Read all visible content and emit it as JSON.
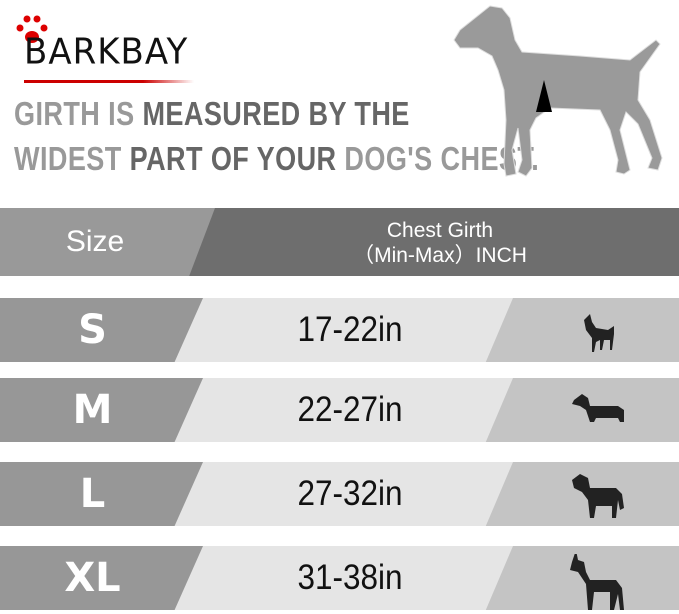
{
  "brand": {
    "name": "BARKBAY",
    "accent": "#cc0000"
  },
  "headline": {
    "line1": [
      {
        "text": "GIRTH ",
        "tone": "light"
      },
      {
        "text": "IS ",
        "tone": "light"
      },
      {
        "text": "MEASURED BY THE",
        "tone": "dark"
      }
    ],
    "line2": [
      {
        "text": "WIDEST ",
        "tone": "light"
      },
      {
        "text": "PART OF YOUR ",
        "tone": "dark"
      },
      {
        "text": "DOG'S CHEST.",
        "tone": "light"
      }
    ]
  },
  "table": {
    "header": {
      "size": "Size",
      "girth_line1": "Chest Girth",
      "girth_line2": "（Min-Max）INCH"
    },
    "rows": [
      {
        "size": "S",
        "range": "17-22in",
        "icon": "chihuahua-icon"
      },
      {
        "size": "M",
        "range": "22-27in",
        "icon": "dachshund-icon"
      },
      {
        "size": "L",
        "range": "27-32in",
        "icon": "labrador-icon"
      },
      {
        "size": "XL",
        "range": "31-38in",
        "icon": "great-dane-icon"
      }
    ]
  }
}
